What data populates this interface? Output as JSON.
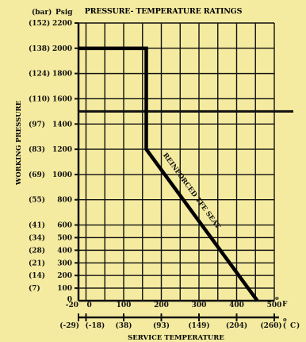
{
  "chart_data": {
    "type": "line",
    "title": "PRESSURE- TEMPERATURE RATINGS",
    "xlabel": "SERVICE TEMPERATURE",
    "ylabel": "WORKING PRESSURE",
    "y_unit_left": "(bar)",
    "y_unit_right": "Psig",
    "x_unit_top": "F",
    "x_unit_bottom": "C",
    "ylim": [
      0,
      2200
    ],
    "xlim": [
      -20,
      500
    ],
    "y_ticks_psig": [
      {
        "value": 0,
        "label": "0"
      },
      {
        "value": 100,
        "label": "100"
      },
      {
        "value": 200,
        "label": "200"
      },
      {
        "value": 300,
        "label": "300"
      },
      {
        "value": 400,
        "label": "400"
      },
      {
        "value": 500,
        "label": "500"
      },
      {
        "value": 600,
        "label": "600"
      },
      {
        "value": 800,
        "label": "800"
      },
      {
        "value": 1000,
        "label": "1000"
      },
      {
        "value": 1200,
        "label": "1200"
      },
      {
        "value": 1400,
        "label": "1400"
      },
      {
        "value": 1600,
        "label": "1600"
      },
      {
        "value": 1800,
        "label": "1800"
      },
      {
        "value": 2000,
        "label": "2000"
      },
      {
        "value": 2200,
        "label": "2200"
      }
    ],
    "y_ticks_bar": [
      {
        "value": 100,
        "label": "(7)"
      },
      {
        "value": 200,
        "label": "(14)"
      },
      {
        "value": 300,
        "label": "(21)"
      },
      {
        "value": 400,
        "label": "(28)"
      },
      {
        "value": 500,
        "label": "(34)"
      },
      {
        "value": 600,
        "label": "(41)"
      },
      {
        "value": 800,
        "label": "(55)"
      },
      {
        "value": 1000,
        "label": "(69)"
      },
      {
        "value": 1200,
        "label": "(83)"
      },
      {
        "value": 1400,
        "label": "(97)"
      },
      {
        "value": 1600,
        "label": "(110)"
      },
      {
        "value": 1800,
        "label": "(124)"
      },
      {
        "value": 2000,
        "label": "(138)"
      },
      {
        "value": 2200,
        "label": "(152)"
      }
    ],
    "x_ticks_f": [
      {
        "value": -20,
        "label": "-20"
      },
      {
        "value": 0,
        "label": "0"
      },
      {
        "value": 100,
        "label": "100"
      },
      {
        "value": 200,
        "label": "200"
      },
      {
        "value": 300,
        "label": "300"
      },
      {
        "value": 400,
        "label": "400"
      },
      {
        "value": 500,
        "label": "500"
      }
    ],
    "x_ticks_c": [
      {
        "value": -20,
        "label": "(-29)"
      },
      {
        "value": 0,
        "label": "(-18)"
      },
      {
        "value": 100,
        "label": "(38)"
      },
      {
        "value": 200,
        "label": "(93)"
      },
      {
        "value": 300,
        "label": "(149)"
      },
      {
        "value": 400,
        "label": "(204)"
      },
      {
        "value": 500,
        "label": "(260)"
      }
    ],
    "grid_x": [
      -20,
      0,
      50,
      100,
      150,
      200,
      250,
      300,
      350,
      400,
      450,
      500
    ],
    "grid_y": [
      0,
      100,
      200,
      300,
      400,
      500,
      600,
      800,
      1000,
      1200,
      1400,
      1600,
      1800,
      2000,
      2200
    ],
    "series": [
      {
        "name": "REINFORCED TFE SEAT",
        "x": [
          -20,
          160,
          160,
          455
        ],
        "y": [
          2000,
          2000,
          1200,
          0
        ]
      }
    ],
    "reference_line": {
      "y": 1500
    },
    "grid": true,
    "legend": "none"
  }
}
